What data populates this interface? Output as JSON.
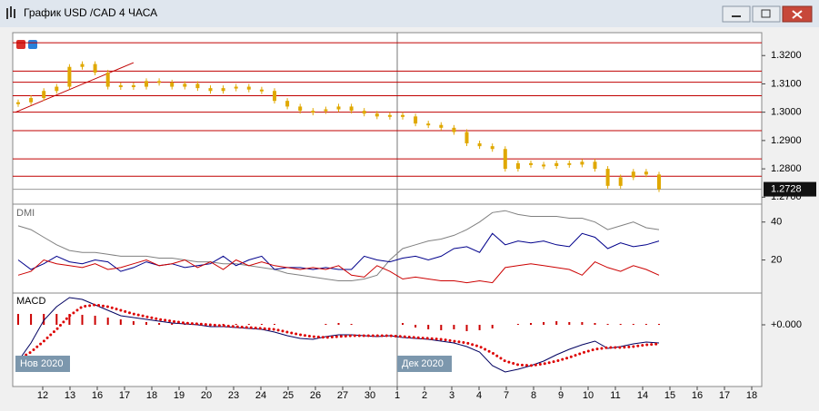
{
  "window": {
    "title": "График USD /CAD  4 ЧАСА"
  },
  "chart_data": [
    {
      "type": "candlestick",
      "closes": [
        1.3035,
        1.305,
        1.3075,
        1.309,
        1.316,
        1.317,
        1.314,
        1.309,
        1.3095,
        1.309,
        1.311,
        1.3105,
        1.309,
        1.31,
        1.3085,
        1.3075,
        1.3085,
        1.309,
        1.308,
        1.3075,
        1.304,
        1.302,
        1.3005,
        1.3005,
        1.301,
        1.302,
        1.3005,
        1.2995,
        1.2985,
        1.299,
        1.2985,
        1.296,
        1.2955,
        1.2945,
        1.293,
        1.289,
        1.288,
        1.287,
        1.28,
        1.282,
        1.2815,
        1.281,
        1.282,
        1.2815,
        1.2825,
        1.28,
        1.274,
        1.277,
        1.279,
        1.278,
        1.2728
      ],
      "color": "#e0a800",
      "ylim": [
        1.2685,
        1.3268
      ],
      "yticks": [
        {
          "value": 1.32,
          "label": "1.3200"
        },
        {
          "value": 1.31,
          "label": "1.3100"
        },
        {
          "value": 1.3,
          "label": "1.3000"
        },
        {
          "value": 1.29,
          "label": "1.2900"
        },
        {
          "value": 1.28,
          "label": "1.2800"
        },
        {
          "value": 1.27,
          "label": "1.2700"
        }
      ],
      "levels": [
        1.3245,
        1.3145,
        1.3106,
        1.3058,
        1.3,
        1.2935,
        1.2835,
        1.2774
      ],
      "level_color": "#c00000",
      "trendline": [
        1.3,
        1.3175
      ],
      "last_price": 1.2728
    },
    {
      "type": "line",
      "title": "DMI",
      "ylim": [
        4,
        48
      ],
      "yticks": [
        40,
        20
      ],
      "series": [
        {
          "color": "#808080",
          "values": [
            38,
            36,
            32,
            28,
            25,
            24,
            24,
            23,
            22,
            22,
            22,
            21,
            21,
            20,
            19,
            19,
            18,
            18,
            17,
            16,
            15,
            13,
            12,
            11,
            10,
            9,
            9,
            10,
            12,
            20,
            26,
            28,
            30,
            31,
            33,
            36,
            40,
            45,
            46,
            44,
            43,
            43,
            43,
            42,
            42,
            40,
            36,
            38,
            40,
            37,
            36
          ]
        },
        {
          "color": "#00008b",
          "values": [
            20,
            15,
            18,
            22,
            19,
            18,
            20,
            19,
            14,
            16,
            19,
            17,
            18,
            16,
            17,
            18,
            22,
            17,
            20,
            22,
            15,
            16,
            16,
            15,
            16,
            15,
            15,
            22,
            20,
            19,
            21,
            22,
            20,
            22,
            26,
            27,
            24,
            34,
            28,
            30,
            29,
            30,
            28,
            27,
            34,
            32,
            26,
            29,
            27,
            28,
            30
          ]
        },
        {
          "color": "#cc0000",
          "values": [
            12,
            14,
            20,
            18,
            17,
            16,
            18,
            15,
            16,
            18,
            20,
            17,
            18,
            20,
            16,
            19,
            15,
            20,
            17,
            19,
            17,
            16,
            15,
            16,
            15,
            17,
            12,
            11,
            17,
            14,
            10,
            11,
            10,
            9,
            9,
            8,
            9,
            8,
            16,
            17,
            18,
            17,
            16,
            15,
            12,
            19,
            16,
            14,
            17,
            15,
            12
          ]
        }
      ]
    },
    {
      "type": "macd",
      "title": "MACD",
      "ylim": [
        -0.0062,
        0.0033
      ],
      "yticks": [
        {
          "value": 0,
          "label": "+0.000"
        }
      ],
      "histogram": {
        "color": "#cc0000",
        "values": [
          0.0012,
          0.0012,
          0.0012,
          0.0012,
          0.0012,
          0.0011,
          0.001,
          0.0008,
          0.0006,
          0.0004,
          0.0003,
          0.0002,
          0.0002,
          0.0001,
          0.0001,
          0.0001,
          0.0001,
          0.0001,
          0.0001,
          0.0001,
          0.0001,
          0,
          0,
          0,
          0.0001,
          0.0002,
          0.0001,
          0,
          0,
          0,
          0.0002,
          -0.0003,
          -0.0005,
          -0.0006,
          -0.0005,
          -0.0007,
          -0.0006,
          -0.0004,
          0,
          0.0001,
          0.0002,
          0.0003,
          0.0004,
          0.0003,
          0.0003,
          0.0002,
          0.0001,
          0.0001,
          0.0001,
          0.0001,
          0.0001
        ]
      },
      "series": [
        {
          "color": "#000060",
          "values": [
            -0.004,
            -0.002,
            0.0005,
            0.002,
            0.003,
            0.0028,
            0.0022,
            0.0016,
            0.001,
            0.0008,
            0.0006,
            0.0004,
            0.0002,
            0.0001,
            0,
            -0.0002,
            -0.0002,
            -0.0003,
            -0.0004,
            -0.0005,
            -0.0008,
            -0.0012,
            -0.0015,
            -0.0016,
            -0.0013,
            -0.0011,
            -0.0011,
            -0.0012,
            -0.0013,
            -0.0012,
            -0.0014,
            -0.0015,
            -0.0016,
            -0.0018,
            -0.002,
            -0.0024,
            -0.003,
            -0.0045,
            -0.0052,
            -0.0049,
            -0.0045,
            -0.004,
            -0.0033,
            -0.0027,
            -0.0022,
            -0.0018,
            -0.0026,
            -0.0024,
            -0.0021,
            -0.0019,
            -0.002
          ]
        },
        {
          "color": "#dd0000",
          "style": "dotted",
          "values": [
            -0.0038,
            -0.003,
            -0.0018,
            -0.0005,
            0.001,
            0.002,
            0.0022,
            0.002,
            0.0016,
            0.0012,
            0.0009,
            0.0006,
            0.0004,
            0.0002,
            0.0001,
            0,
            -0.0001,
            -0.0002,
            -0.0003,
            -0.0004,
            -0.0005,
            -0.0008,
            -0.0011,
            -0.0013,
            -0.0014,
            -0.0013,
            -0.0012,
            -0.0012,
            -0.0012,
            -0.0012,
            -0.0013,
            -0.0014,
            -0.0015,
            -0.0016,
            -0.0018,
            -0.002,
            -0.0024,
            -0.0031,
            -0.004,
            -0.0044,
            -0.0045,
            -0.0043,
            -0.004,
            -0.0036,
            -0.0031,
            -0.0027,
            -0.0025,
            -0.0025,
            -0.0024,
            -0.0022,
            -0.0021
          ]
        }
      ]
    }
  ],
  "x_labels": [
    "12",
    "13",
    "16",
    "17",
    "18",
    "19",
    "20",
    "23",
    "24",
    "25",
    "26",
    "27",
    "30",
    "1",
    "2",
    "3",
    "4",
    "7",
    "8",
    "9",
    "10",
    "11",
    "14",
    "15",
    "16",
    "17",
    "18"
  ],
  "period_labels": [
    "Нов 2020",
    "Дек 2020"
  ]
}
